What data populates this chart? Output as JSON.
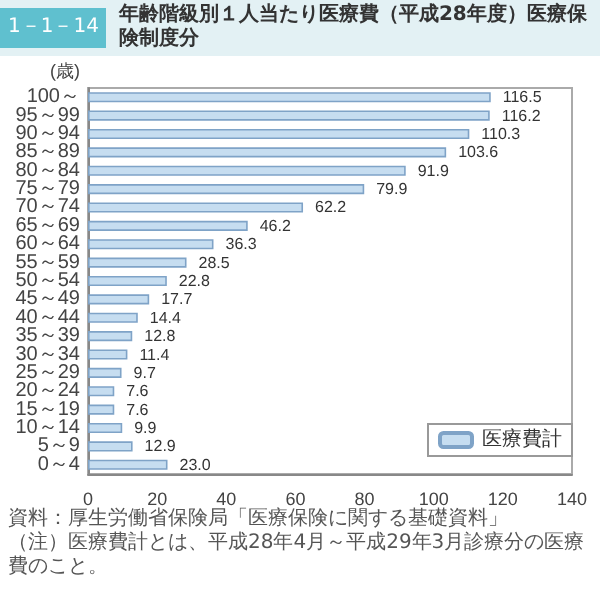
{
  "chart_data": {
    "type": "bar",
    "orientation": "horizontal",
    "title": "年齢階級別１人当たり医療費（平成28年度）医療保険制度分",
    "ylabel": "(歳)",
    "annotations": [
      "1－1－14",
      "資料：厚生労働省保険局「医療保険に関する基礎資料」",
      "（注）医療費計とは、平成28年4月～平成29年3月診療分の医療費のこと。"
    ],
    "categories": [
      "100～",
      "95～99",
      "90～94",
      "85～89",
      "80～84",
      "75～79",
      "70～74",
      "65～69",
      "60～64",
      "55～59",
      "50～54",
      "45～49",
      "40～44",
      "35～39",
      "30～34",
      "25～29",
      "20～24",
      "15～19",
      "10～14",
      "5～9",
      "0～4"
    ],
    "series": [
      {
        "name": "医療費計",
        "color": "#c6ddf0",
        "values": [
          116.5,
          116.2,
          110.3,
          103.6,
          91.9,
          79.9,
          62.2,
          46.2,
          36.3,
          28.5,
          22.8,
          17.7,
          14.4,
          12.8,
          11.4,
          9.7,
          7.6,
          7.6,
          9.9,
          12.9,
          23.0
        ],
        "value_labels": [
          "116.5",
          "116.2",
          "110.3",
          "103.6",
          "91.9",
          "79.9",
          "62.2",
          "46.2",
          "36.3",
          "28.5",
          "22.8",
          "17.7",
          "14.4",
          "12.8",
          "11.4",
          "9.7",
          "7.6",
          "7.6",
          "9.9",
          "12.9",
          "23.0"
        ]
      }
    ],
    "xlim": [
      0,
      140
    ],
    "xticks": [
      0,
      20,
      40,
      60,
      80,
      100,
      120,
      140
    ],
    "legend": "bottom right"
  }
}
